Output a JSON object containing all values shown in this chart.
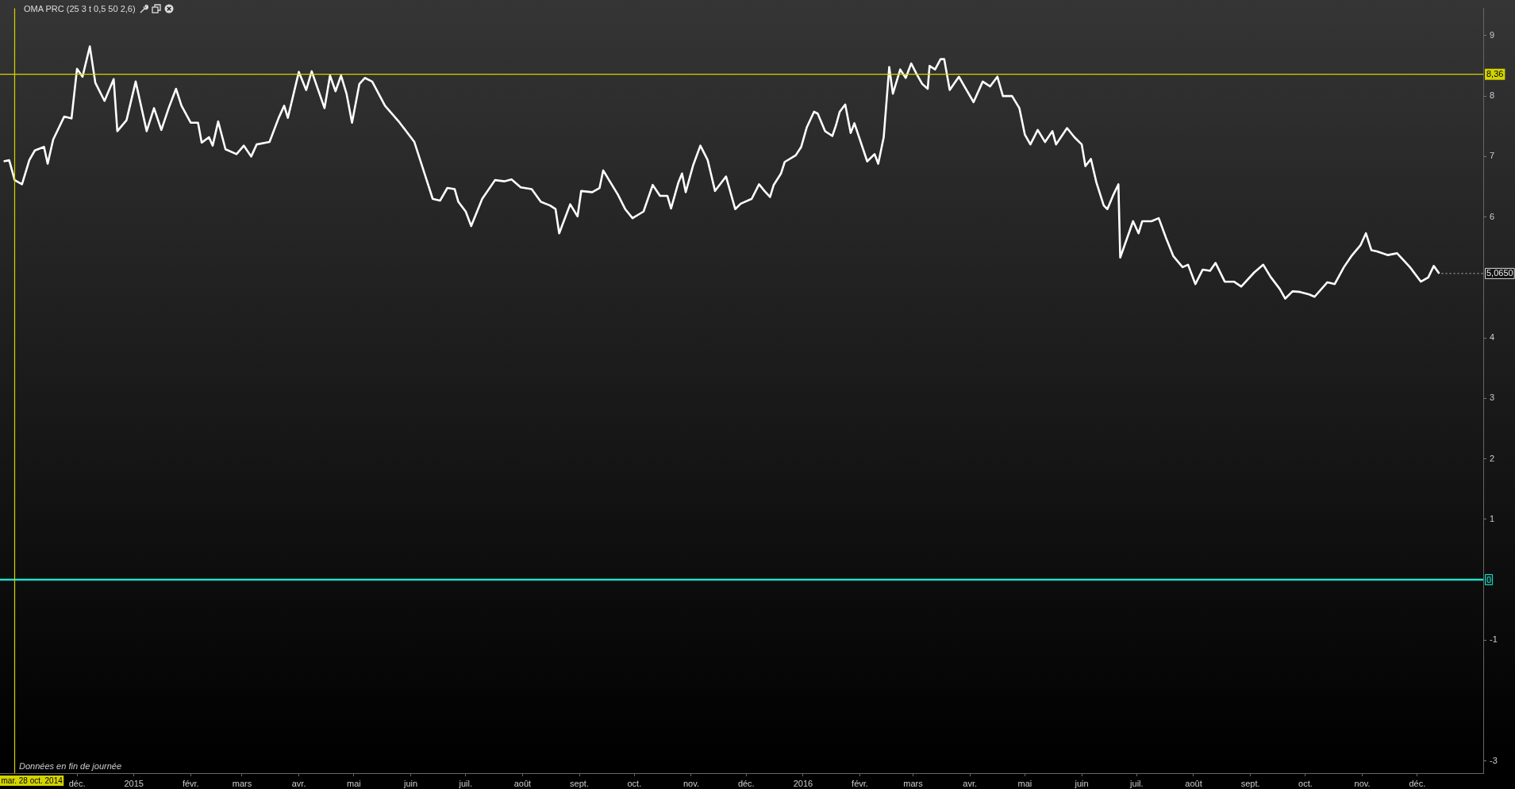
{
  "chart_data": {
    "type": "line",
    "title": "OMA PRC (25 3 t 0,5 50 2,6)",
    "x": [
      "2014-10-22",
      "2014-10-25",
      "2014-10-28",
      "2014-11-01",
      "2014-11-05",
      "2014-11-08",
      "2014-11-13",
      "2014-11-15",
      "2014-11-18",
      "2014-11-24",
      "2014-11-28",
      "2014-12-01",
      "2014-12-04",
      "2014-12-08",
      "2014-12-11",
      "2014-12-16",
      "2014-12-21",
      "2014-12-23",
      "2014-12-28",
      "2015-01-02",
      "2015-01-08",
      "2015-01-12",
      "2015-01-16",
      "2015-01-20",
      "2015-01-24",
      "2015-01-27",
      "2015-02-01",
      "2015-02-05",
      "2015-02-07",
      "2015-02-11",
      "2015-02-13",
      "2015-02-16",
      "2015-02-20",
      "2015-02-26",
      "2015-03-02",
      "2015-03-06",
      "2015-03-09",
      "2015-03-16",
      "2015-03-21",
      "2015-03-24",
      "2015-03-26",
      "2015-04-01",
      "2015-04-05",
      "2015-04-08",
      "2015-04-15",
      "2015-04-18",
      "2015-04-21",
      "2015-04-24",
      "2015-04-27",
      "2015-04-30",
      "2015-05-01",
      "2015-05-04",
      "2015-05-07",
      "2015-05-11",
      "2015-05-18",
      "2015-05-26",
      "2015-06-03",
      "2015-06-08",
      "2015-06-13",
      "2015-06-17",
      "2015-06-21",
      "2015-06-25",
      "2015-06-27",
      "2015-07-01",
      "2015-07-04",
      "2015-07-10",
      "2015-07-17",
      "2015-07-22",
      "2015-07-26",
      "2015-07-31",
      "2015-08-06",
      "2015-08-11",
      "2015-08-16",
      "2015-08-19",
      "2015-08-21",
      "2015-08-27",
      "2015-08-31",
      "2015-09-02",
      "2015-09-08",
      "2015-09-12",
      "2015-09-14",
      "2015-09-17",
      "2015-09-22",
      "2015-09-26",
      "2015-09-30",
      "2015-10-06",
      "2015-10-11",
      "2015-10-15",
      "2015-10-19",
      "2015-10-21",
      "2015-10-25",
      "2015-10-27",
      "2015-10-29",
      "2015-11-02",
      "2015-11-06",
      "2015-11-10",
      "2015-11-14",
      "2015-11-20",
      "2015-11-25",
      "2015-11-28",
      "2015-12-04",
      "2015-12-08",
      "2015-12-11",
      "2015-12-14",
      "2015-12-16",
      "2015-12-20",
      "2015-12-22",
      "2015-12-28",
      "2015-12-31",
      "2016-01-03",
      "2016-01-07",
      "2016-01-09",
      "2016-01-13",
      "2016-01-17",
      "2016-01-19",
      "2016-01-21",
      "2016-01-24",
      "2016-01-27",
      "2016-01-29",
      "2016-02-01",
      "2016-02-05",
      "2016-02-09",
      "2016-02-11",
      "2016-02-14",
      "2016-02-17",
      "2016-02-19",
      "2016-02-23",
      "2016-02-26",
      "2016-02-29",
      "2016-03-03",
      "2016-03-06",
      "2016-03-09",
      "2016-03-10",
      "2016-03-13",
      "2016-03-16",
      "2016-03-18",
      "2016-03-21",
      "2016-03-26",
      "2016-03-29",
      "2016-04-03",
      "2016-04-08",
      "2016-04-12",
      "2016-04-16",
      "2016-04-19",
      "2016-04-24",
      "2016-04-28",
      "2016-05-01",
      "2016-05-04",
      "2016-05-08",
      "2016-05-12",
      "2016-05-16",
      "2016-05-18",
      "2016-05-24",
      "2016-05-28",
      "2016-06-01",
      "2016-06-03",
      "2016-06-06",
      "2016-06-09",
      "2016-06-13",
      "2016-06-15",
      "2016-06-18",
      "2016-06-21",
      "2016-06-22",
      "2016-06-29",
      "2016-07-02",
      "2016-07-04",
      "2016-07-09",
      "2016-07-13",
      "2016-07-17",
      "2016-07-21",
      "2016-07-26",
      "2016-07-29",
      "2016-08-02",
      "2016-08-06",
      "2016-08-10",
      "2016-08-13",
      "2016-08-18",
      "2016-08-23",
      "2016-08-27",
      "2016-09-03",
      "2016-09-08",
      "2016-09-12",
      "2016-09-17",
      "2016-09-20",
      "2016-09-24",
      "2016-09-28",
      "2016-10-03",
      "2016-10-06",
      "2016-10-13",
      "2016-10-17",
      "2016-10-22",
      "2016-10-26",
      "2016-10-31",
      "2016-11-03",
      "2016-11-06",
      "2016-11-09",
      "2016-11-15",
      "2016-11-20",
      "2016-11-27",
      "2016-12-03",
      "2016-12-07",
      "2016-12-10",
      "2016-12-13"
    ],
    "series": [
      {
        "color": "#ffffff",
        "values": [
          6.92,
          6.94,
          6.61,
          6.54,
          6.94,
          7.1,
          7.16,
          6.88,
          7.28,
          7.66,
          7.63,
          8.45,
          8.32,
          8.82,
          8.22,
          7.92,
          8.28,
          7.42,
          7.6,
          8.24,
          7.42,
          7.8,
          7.44,
          7.8,
          8.12,
          7.84,
          7.56,
          7.56,
          7.23,
          7.32,
          7.18,
          7.58,
          7.12,
          7.04,
          7.18,
          7.0,
          7.2,
          7.24,
          7.64,
          7.84,
          7.64,
          8.4,
          8.1,
          8.41,
          7.8,
          8.34,
          8.08,
          8.34,
          8.04,
          7.56,
          7.72,
          8.2,
          8.3,
          8.24,
          7.84,
          7.56,
          7.24,
          6.77,
          6.3,
          6.27,
          6.48,
          6.46,
          6.25,
          6.09,
          5.85,
          6.3,
          6.61,
          6.59,
          6.62,
          6.49,
          6.46,
          6.25,
          6.19,
          6.13,
          5.73,
          6.21,
          6.01,
          6.43,
          6.41,
          6.48,
          6.77,
          6.62,
          6.37,
          6.13,
          5.98,
          6.09,
          6.53,
          6.35,
          6.35,
          6.14,
          6.57,
          6.72,
          6.41,
          6.85,
          7.18,
          6.94,
          6.43,
          6.67,
          6.13,
          6.22,
          6.3,
          6.54,
          6.43,
          6.33,
          6.53,
          6.72,
          6.91,
          7.02,
          7.16,
          7.48,
          7.74,
          7.71,
          7.42,
          7.34,
          7.52,
          7.74,
          7.86,
          7.39,
          7.55,
          7.28,
          6.92,
          7.04,
          6.88,
          7.32,
          8.48,
          8.04,
          8.44,
          8.3,
          8.54,
          8.36,
          8.2,
          8.12,
          8.5,
          8.44,
          8.61,
          8.61,
          8.1,
          8.32,
          8.16,
          7.9,
          8.24,
          8.16,
          8.32,
          8.0,
          8.0,
          7.8,
          7.36,
          7.2,
          7.44,
          7.24,
          7.42,
          7.2,
          7.47,
          7.32,
          7.2,
          6.84,
          6.96,
          6.57,
          6.19,
          6.13,
          6.35,
          6.54,
          5.33,
          5.93,
          5.73,
          5.93,
          5.93,
          5.98,
          5.65,
          5.35,
          5.17,
          5.21,
          4.89,
          5.13,
          5.11,
          5.24,
          4.93,
          4.93,
          4.85,
          5.08,
          5.21,
          5.01,
          4.81,
          4.65,
          4.77,
          4.76,
          4.72,
          4.68,
          4.92,
          4.89,
          5.17,
          5.35,
          5.53,
          5.73,
          5.45,
          5.43,
          5.37,
          5.4,
          5.17,
          4.93,
          5.0,
          5.19,
          5.065
        ]
      }
    ],
    "xlim": [
      "2014-10-20",
      "2017-01-06"
    ],
    "xticks": [
      {
        "value": "2014-12-01",
        "label": "déc."
      },
      {
        "value": "2015-01-01",
        "label": "2015"
      },
      {
        "value": "2015-02-01",
        "label": "févr."
      },
      {
        "value": "2015-03-01",
        "label": "mars"
      },
      {
        "value": "2015-04-01",
        "label": "avr."
      },
      {
        "value": "2015-05-01",
        "label": "mai"
      },
      {
        "value": "2015-06-01",
        "label": "juin"
      },
      {
        "value": "2015-07-01",
        "label": "juil."
      },
      {
        "value": "2015-08-01",
        "label": "août"
      },
      {
        "value": "2015-09-01",
        "label": "sept."
      },
      {
        "value": "2015-10-01",
        "label": "oct."
      },
      {
        "value": "2015-11-01",
        "label": "nov."
      },
      {
        "value": "2015-12-01",
        "label": "déc."
      },
      {
        "value": "2016-01-01",
        "label": "2016"
      },
      {
        "value": "2016-02-01",
        "label": "févr."
      },
      {
        "value": "2016-03-01",
        "label": "mars"
      },
      {
        "value": "2016-04-01",
        "label": "avr."
      },
      {
        "value": "2016-05-01",
        "label": "mai"
      },
      {
        "value": "2016-06-01",
        "label": "juin"
      },
      {
        "value": "2016-07-01",
        "label": "juil."
      },
      {
        "value": "2016-08-01",
        "label": "août"
      },
      {
        "value": "2016-09-01",
        "label": "sept."
      },
      {
        "value": "2016-10-01",
        "label": "oct."
      },
      {
        "value": "2016-11-01",
        "label": "nov."
      },
      {
        "value": "2016-12-01",
        "label": "déc."
      }
    ],
    "ylim": [
      -3.2,
      9.45
    ],
    "yticks": [
      -3,
      -1,
      1,
      2,
      3,
      4,
      6,
      7,
      8,
      9
    ],
    "ref_lines": [
      {
        "axis": "y",
        "value": 8.36,
        "label": "8,36",
        "color": "#d4d400"
      },
      {
        "axis": "y",
        "value": 0,
        "label": "0",
        "color": "#20e0c8"
      },
      {
        "axis": "x",
        "value": "2014-10-28",
        "label": "mar. 28 oct. 2014",
        "color": "#d4d400"
      }
    ],
    "annotations": [
      "Données en fin de journée",
      {
        "text": "5,0650",
        "x": "2016-12-13",
        "y": 5.065
      }
    ],
    "grid": false,
    "legend": false,
    "marker": "none",
    "line_style": "solid"
  }
}
